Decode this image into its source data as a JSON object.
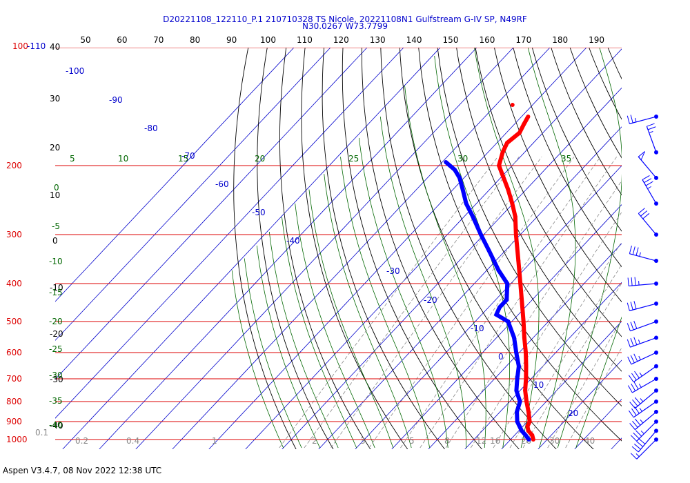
{
  "header": {
    "title_line1": "D20221108_122110_P.1 210710328 TS Nicole, 20221108N1 Gulfstream G-IV SP, N49RF",
    "title_line2": "N30.0267 W73.7799"
  },
  "footer": {
    "text": "Aspen V3.4.7, 08 Nov 2022  12:38 UTC"
  },
  "colors": {
    "title": "#0000cc",
    "pressure": "#dd0000",
    "isotherm": "#0000cc",
    "dry_adiabat": "#000000",
    "moist_adiabat": "#006600",
    "mixing_ratio": "#888888",
    "temperature": "#ff0000",
    "dewpoint": "#0000ff",
    "wind": "#0000ff"
  },
  "chart_data": {
    "type": "skew-t log-p sounding",
    "x_axis_top_labels": [
      "50",
      "60",
      "70",
      "80",
      "90",
      "100",
      "110",
      "120",
      "130",
      "140",
      "150",
      "160",
      "170",
      "180",
      "190"
    ],
    "pressure_labels": [
      "100-110",
      "200",
      "300",
      "400",
      "500",
      "600",
      "700",
      "800",
      "900",
      "1000"
    ],
    "pressure_levels_hpa": [
      100,
      200,
      300,
      400,
      500,
      600,
      700,
      800,
      900,
      1000
    ],
    "left_theta_labels": [
      "40",
      "30",
      "20",
      "10",
      "0",
      "-10",
      "-20",
      "-30",
      "-40"
    ],
    "isotherm_labels": [
      "-100",
      "-90",
      "-80",
      "-70",
      "-60",
      "-50",
      "-40",
      "-30",
      "-20",
      "-10",
      "0",
      "10",
      "20",
      "30"
    ],
    "moist_adiabat_labels": [
      "5",
      "10",
      "15",
      "20",
      "25",
      "30",
      "35",
      "0",
      "-5",
      "-10",
      "-15",
      "-20",
      "-25",
      "-30",
      "-35",
      "-40"
    ],
    "mixing_ratio_labels": [
      "0.1",
      "0.2",
      "0.4",
      "1",
      "2",
      "3",
      "5",
      "8",
      "12",
      "16",
      "20",
      "30",
      "40"
    ],
    "temperature_profile": [
      {
        "p": 1000,
        "t": 26.2
      },
      {
        "p": 975,
        "t": 24.8
      },
      {
        "p": 950,
        "t": 22.6
      },
      {
        "p": 925,
        "t": 21.2
      },
      {
        "p": 900,
        "t": 20.6
      },
      {
        "p": 850,
        "t": 17.8
      },
      {
        "p": 800,
        "t": 14.6
      },
      {
        "p": 750,
        "t": 11.4
      },
      {
        "p": 700,
        "t": 8.6
      },
      {
        "p": 650,
        "t": 5.4
      },
      {
        "p": 600,
        "t": 1.8
      },
      {
        "p": 550,
        "t": -2.4
      },
      {
        "p": 500,
        "t": -6.8
      },
      {
        "p": 450,
        "t": -11.8
      },
      {
        "p": 400,
        "t": -17.4
      },
      {
        "p": 350,
        "t": -23.8
      },
      {
        "p": 300,
        "t": -31.2
      },
      {
        "p": 270,
        "t": -36.0
      },
      {
        "p": 250,
        "t": -40.2
      },
      {
        "p": 230,
        "t": -45.0
      },
      {
        "p": 210,
        "t": -50.6
      },
      {
        "p": 200,
        "t": -53.6
      },
      {
        "p": 185,
        "t": -56.0
      },
      {
        "p": 175,
        "t": -57.2
      },
      {
        "p": 165,
        "t": -56.4
      },
      {
        "p": 157,
        "t": -57.4
      },
      {
        "p": 150,
        "t": -58.2
      }
    ],
    "dewpoint_profile": [
      {
        "p": 1000,
        "t": 25.0
      },
      {
        "p": 975,
        "t": 23.0
      },
      {
        "p": 950,
        "t": 20.8
      },
      {
        "p": 900,
        "t": 17.2
      },
      {
        "p": 850,
        "t": 14.6
      },
      {
        "p": 800,
        "t": 12.8
      },
      {
        "p": 750,
        "t": 9.0
      },
      {
        "p": 700,
        "t": 6.2
      },
      {
        "p": 650,
        "t": 3.4
      },
      {
        "p": 600,
        "t": -0.8
      },
      {
        "p": 550,
        "t": -5.2
      },
      {
        "p": 500,
        "t": -11.0
      },
      {
        "p": 480,
        "t": -16.0
      },
      {
        "p": 460,
        "t": -17.0
      },
      {
        "p": 440,
        "t": -17.0
      },
      {
        "p": 400,
        "t": -21.0
      },
      {
        "p": 370,
        "t": -26.8
      },
      {
        "p": 330,
        "t": -34.4
      },
      {
        "p": 300,
        "t": -40.8
      },
      {
        "p": 270,
        "t": -47.6
      },
      {
        "p": 250,
        "t": -52.8
      },
      {
        "p": 230,
        "t": -57.4
      },
      {
        "p": 215,
        "t": -61.2
      },
      {
        "p": 205,
        "t": -64.6
      },
      {
        "p": 196,
        "t": -69.0
      }
    ],
    "wind_barbs": [
      {
        "p": 150,
        "dir": 255,
        "speed": 25
      },
      {
        "p": 185,
        "dir": 340,
        "speed": 25
      },
      {
        "p": 215,
        "dir": 320,
        "speed": 50
      },
      {
        "p": 250,
        "dir": 330,
        "speed": 35
      },
      {
        "p": 300,
        "dir": 320,
        "speed": 30
      },
      {
        "p": 350,
        "dir": 285,
        "speed": 35
      },
      {
        "p": 400,
        "dir": 265,
        "speed": 35
      },
      {
        "p": 450,
        "dir": 255,
        "speed": 30
      },
      {
        "p": 500,
        "dir": 250,
        "speed": 30
      },
      {
        "p": 550,
        "dir": 250,
        "speed": 35
      },
      {
        "p": 600,
        "dir": 245,
        "speed": 35
      },
      {
        "p": 650,
        "dir": 235,
        "speed": 35
      },
      {
        "p": 700,
        "dir": 240,
        "speed": 35
      },
      {
        "p": 750,
        "dir": 230,
        "speed": 35
      },
      {
        "p": 800,
        "dir": 235,
        "speed": 35
      },
      {
        "p": 850,
        "dir": 230,
        "speed": 35
      },
      {
        "p": 900,
        "dir": 225,
        "speed": 35
      },
      {
        "p": 950,
        "dir": 220,
        "speed": 40
      },
      {
        "p": 1000,
        "dir": 225,
        "speed": 15
      }
    ]
  }
}
